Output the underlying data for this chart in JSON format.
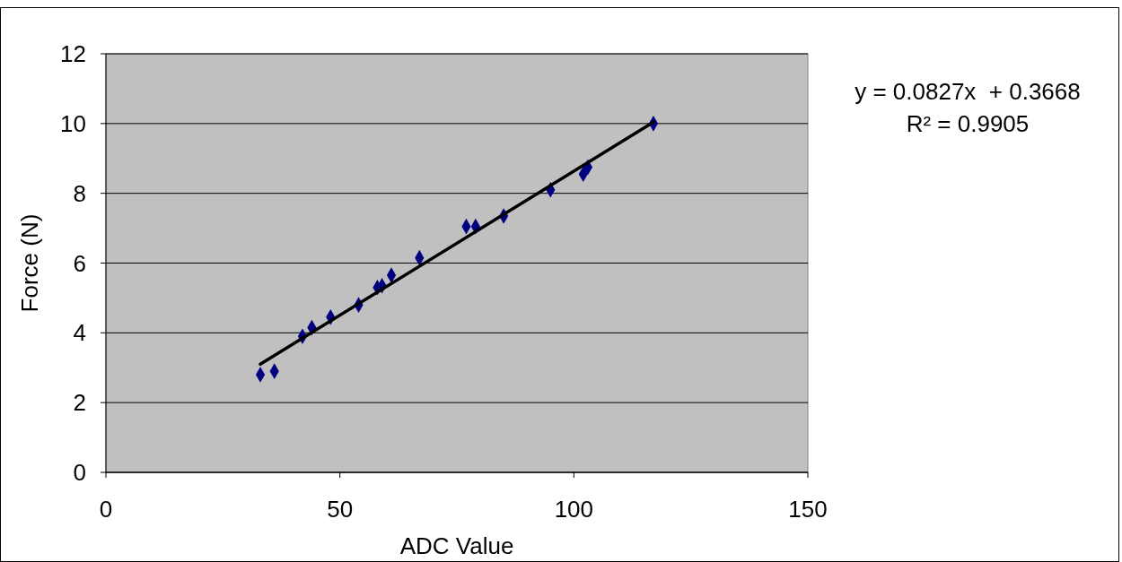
{
  "chart_data": {
    "type": "scatter",
    "xlabel": "ADC Value",
    "ylabel": "Force (N)",
    "xlim": [
      0,
      150
    ],
    "xticks": [
      0,
      50,
      100,
      150
    ],
    "ylim": [
      0,
      12
    ],
    "yticks": [
      0,
      2,
      4,
      6,
      8,
      10,
      12
    ],
    "grid": "y",
    "marker": "diamond",
    "annotations": [
      "y = 0.0827x  + 0.3668",
      "R² = 0.9905"
    ],
    "series": [
      {
        "color": "#000080",
        "x": [
          33,
          36,
          42,
          44,
          48,
          54,
          58,
          59,
          61,
          67,
          77,
          79,
          85,
          95,
          102,
          103,
          117
        ],
        "values": [
          2.8,
          2.9,
          3.9,
          4.15,
          4.45,
          4.8,
          5.3,
          5.35,
          5.65,
          6.15,
          7.05,
          7.05,
          7.35,
          8.1,
          8.55,
          8.75,
          10
        ]
      },
      {
        "type": "line",
        "color": "#000000",
        "line_style": "solid",
        "marker": "none",
        "x": [
          33,
          117
        ],
        "values": [
          3.1,
          10.04
        ]
      }
    ]
  }
}
